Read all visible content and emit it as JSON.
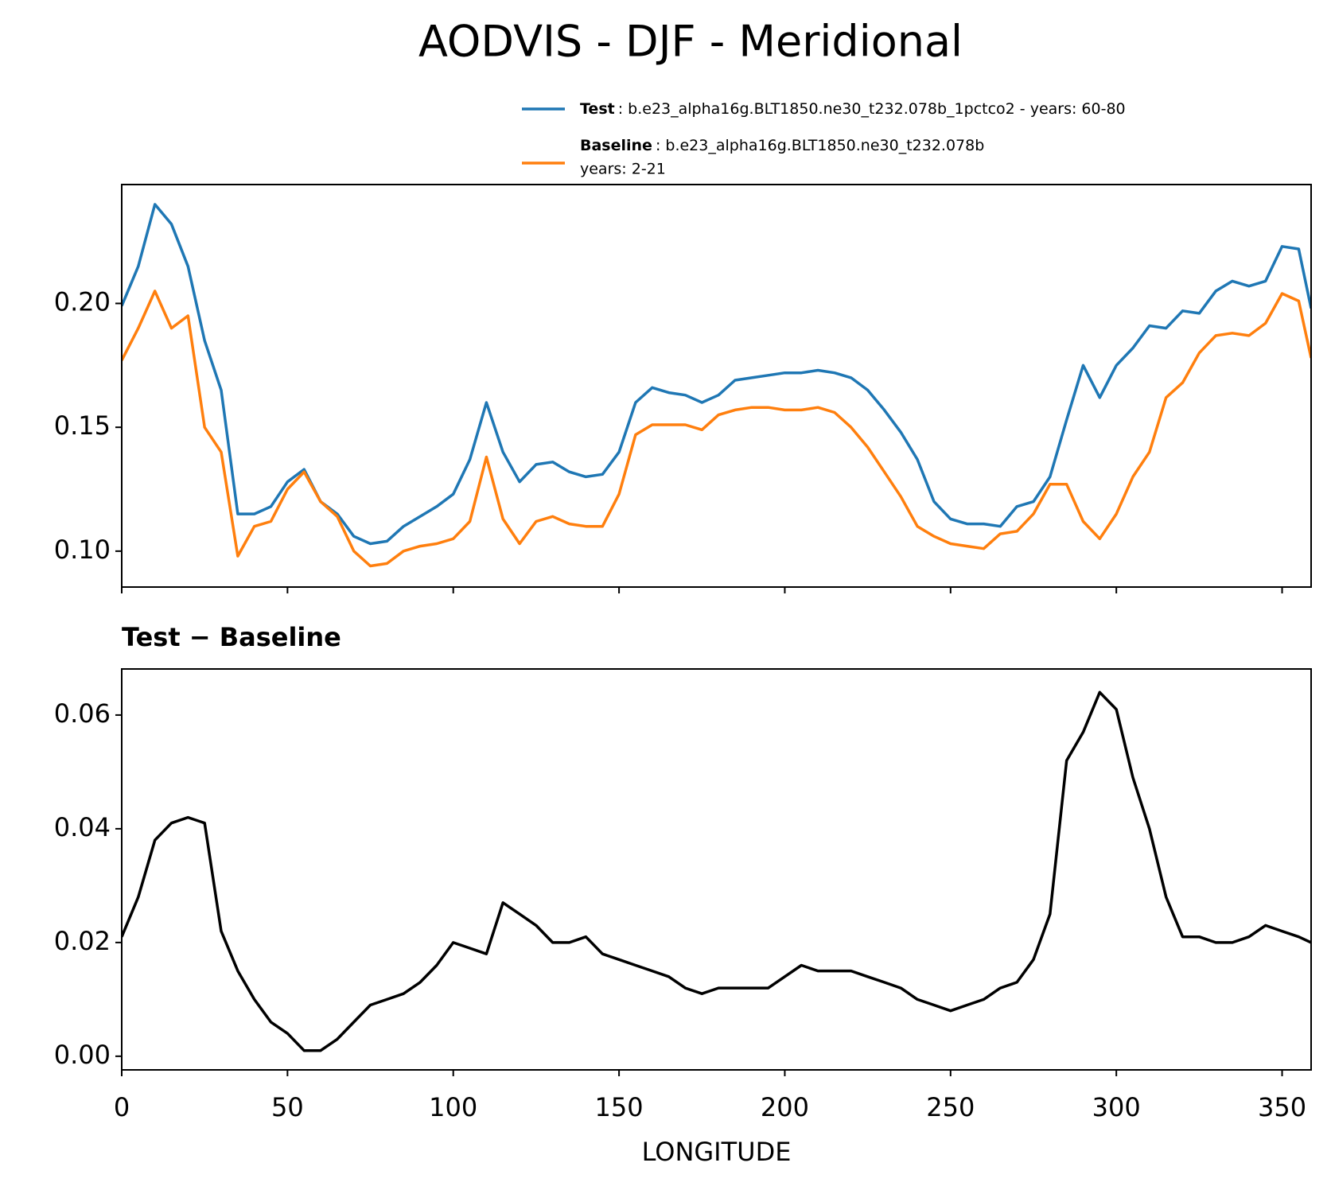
{
  "chart_data": [
    {
      "type": "line",
      "title": "AODVIS - DJF - Meridional",
      "legend": "upper right",
      "x": [
        0,
        5,
        10,
        15,
        20,
        25,
        30,
        35,
        40,
        45,
        50,
        55,
        60,
        65,
        70,
        75,
        80,
        85,
        90,
        95,
        100,
        105,
        110,
        115,
        120,
        125,
        130,
        135,
        140,
        145,
        150,
        155,
        160,
        165,
        170,
        175,
        180,
        185,
        190,
        195,
        200,
        205,
        210,
        215,
        220,
        225,
        230,
        235,
        240,
        245,
        250,
        255,
        260,
        265,
        270,
        275,
        280,
        285,
        290,
        295,
        300,
        305,
        310,
        315,
        320,
        325,
        330,
        335,
        340,
        345,
        350,
        355,
        358.75
      ],
      "series": [
        {
          "name": "Test",
          "description": [
            ": b.e23_alpha16g.BLT1850.ne30_t232.078b_1pctco2 - years: 60-80"
          ],
          "color": "#1f77b4",
          "values": [
            0.199,
            0.215,
            0.24,
            0.232,
            0.215,
            0.185,
            0.165,
            0.115,
            0.115,
            0.118,
            0.128,
            0.133,
            0.12,
            0.115,
            0.106,
            0.103,
            0.104,
            0.11,
            0.114,
            0.118,
            0.123,
            0.137,
            0.16,
            0.14,
            0.128,
            0.135,
            0.136,
            0.132,
            0.13,
            0.131,
            0.14,
            0.16,
            0.166,
            0.164,
            0.163,
            0.16,
            0.163,
            0.169,
            0.17,
            0.171,
            0.172,
            0.172,
            0.173,
            0.172,
            0.17,
            0.165,
            0.157,
            0.148,
            0.137,
            0.12,
            0.113,
            0.111,
            0.111,
            0.11,
            0.118,
            0.12,
            0.13,
            0.153,
            0.175,
            0.162,
            0.175,
            0.182,
            0.191,
            0.19,
            0.197,
            0.196,
            0.205,
            0.209,
            0.207,
            0.209,
            0.223,
            0.222,
            0.198
          ]
        },
        {
          "name": "Baseline",
          "description": [
            ": b.e23_alpha16g.BLT1850.ne30_t232.078b",
            "years: 2-21"
          ],
          "color": "#ff7f0e",
          "values": [
            0.177,
            0.19,
            0.205,
            0.19,
            0.195,
            0.15,
            0.14,
            0.098,
            0.11,
            0.112,
            0.125,
            0.132,
            0.12,
            0.114,
            0.1,
            0.094,
            0.095,
            0.1,
            0.102,
            0.103,
            0.105,
            0.112,
            0.138,
            0.113,
            0.103,
            0.112,
            0.114,
            0.111,
            0.11,
            0.11,
            0.123,
            0.147,
            0.151,
            0.151,
            0.151,
            0.149,
            0.155,
            0.157,
            0.158,
            0.158,
            0.157,
            0.157,
            0.158,
            0.156,
            0.15,
            0.142,
            0.132,
            0.122,
            0.11,
            0.106,
            0.103,
            0.102,
            0.101,
            0.107,
            0.108,
            0.115,
            0.127,
            0.127,
            0.112,
            0.105,
            0.115,
            0.13,
            0.14,
            0.162,
            0.168,
            0.18,
            0.187,
            0.188,
            0.187,
            0.192,
            0.204,
            0.201,
            0.178
          ]
        }
      ],
      "xlim": [
        0,
        358.75
      ],
      "xticks": [
        0,
        50,
        100,
        150,
        200,
        250,
        300,
        350
      ],
      "ylim": [
        0.0855,
        0.248
      ],
      "yticks": [
        {
          "value": 0.1,
          "label": "0.10"
        },
        0.15,
        {
          "value": 0.2,
          "label": "0.20"
        }
      ]
    },
    {
      "type": "line",
      "title": "Test − Baseline",
      "xlabel": "LONGITUDE",
      "x": [
        0,
        5,
        10,
        15,
        20,
        25,
        30,
        35,
        40,
        45,
        50,
        55,
        60,
        65,
        70,
        75,
        80,
        85,
        90,
        95,
        100,
        105,
        110,
        115,
        120,
        125,
        130,
        135,
        140,
        145,
        150,
        155,
        160,
        165,
        170,
        175,
        180,
        185,
        190,
        195,
        200,
        205,
        210,
        215,
        220,
        225,
        230,
        235,
        240,
        245,
        250,
        255,
        260,
        265,
        270,
        275,
        280,
        285,
        290,
        295,
        300,
        305,
        310,
        315,
        320,
        325,
        330,
        335,
        340,
        345,
        350,
        355,
        358.75
      ],
      "series": [
        {
          "color": "#000000",
          "values": [
            0.021,
            0.028,
            0.038,
            0.041,
            0.042,
            0.041,
            0.022,
            0.015,
            0.01,
            0.006,
            0.004,
            0.001,
            0.001,
            0.003,
            0.006,
            0.009,
            0.01,
            0.011,
            0.013,
            0.016,
            0.02,
            0.019,
            0.018,
            0.027,
            0.025,
            0.023,
            0.02,
            0.02,
            0.021,
            0.018,
            0.017,
            0.016,
            0.015,
            0.014,
            0.012,
            0.011,
            0.012,
            0.012,
            0.012,
            0.012,
            0.014,
            0.016,
            0.015,
            0.015,
            0.015,
            0.014,
            0.013,
            0.012,
            0.01,
            0.009,
            0.008,
            0.009,
            0.01,
            0.012,
            0.013,
            0.017,
            0.025,
            0.052,
            0.057,
            0.064,
            0.061,
            0.049,
            0.04,
            0.028,
            0.021,
            0.021,
            0.02,
            0.02,
            0.021,
            0.023,
            0.022,
            0.021,
            0.02
          ]
        }
      ],
      "xlim": [
        0,
        358.75
      ],
      "xticks": [
        0,
        50,
        100,
        150,
        200,
        250,
        300,
        350
      ],
      "ylim": [
        -0.0024,
        0.0681
      ],
      "yticks": [
        {
          "value": 0,
          "label": "0.00"
        },
        {
          "value": 0.02,
          "label": "0.02"
        },
        {
          "value": 0.04,
          "label": "0.04"
        },
        {
          "value": 0.06,
          "label": "0.06"
        }
      ]
    }
  ]
}
